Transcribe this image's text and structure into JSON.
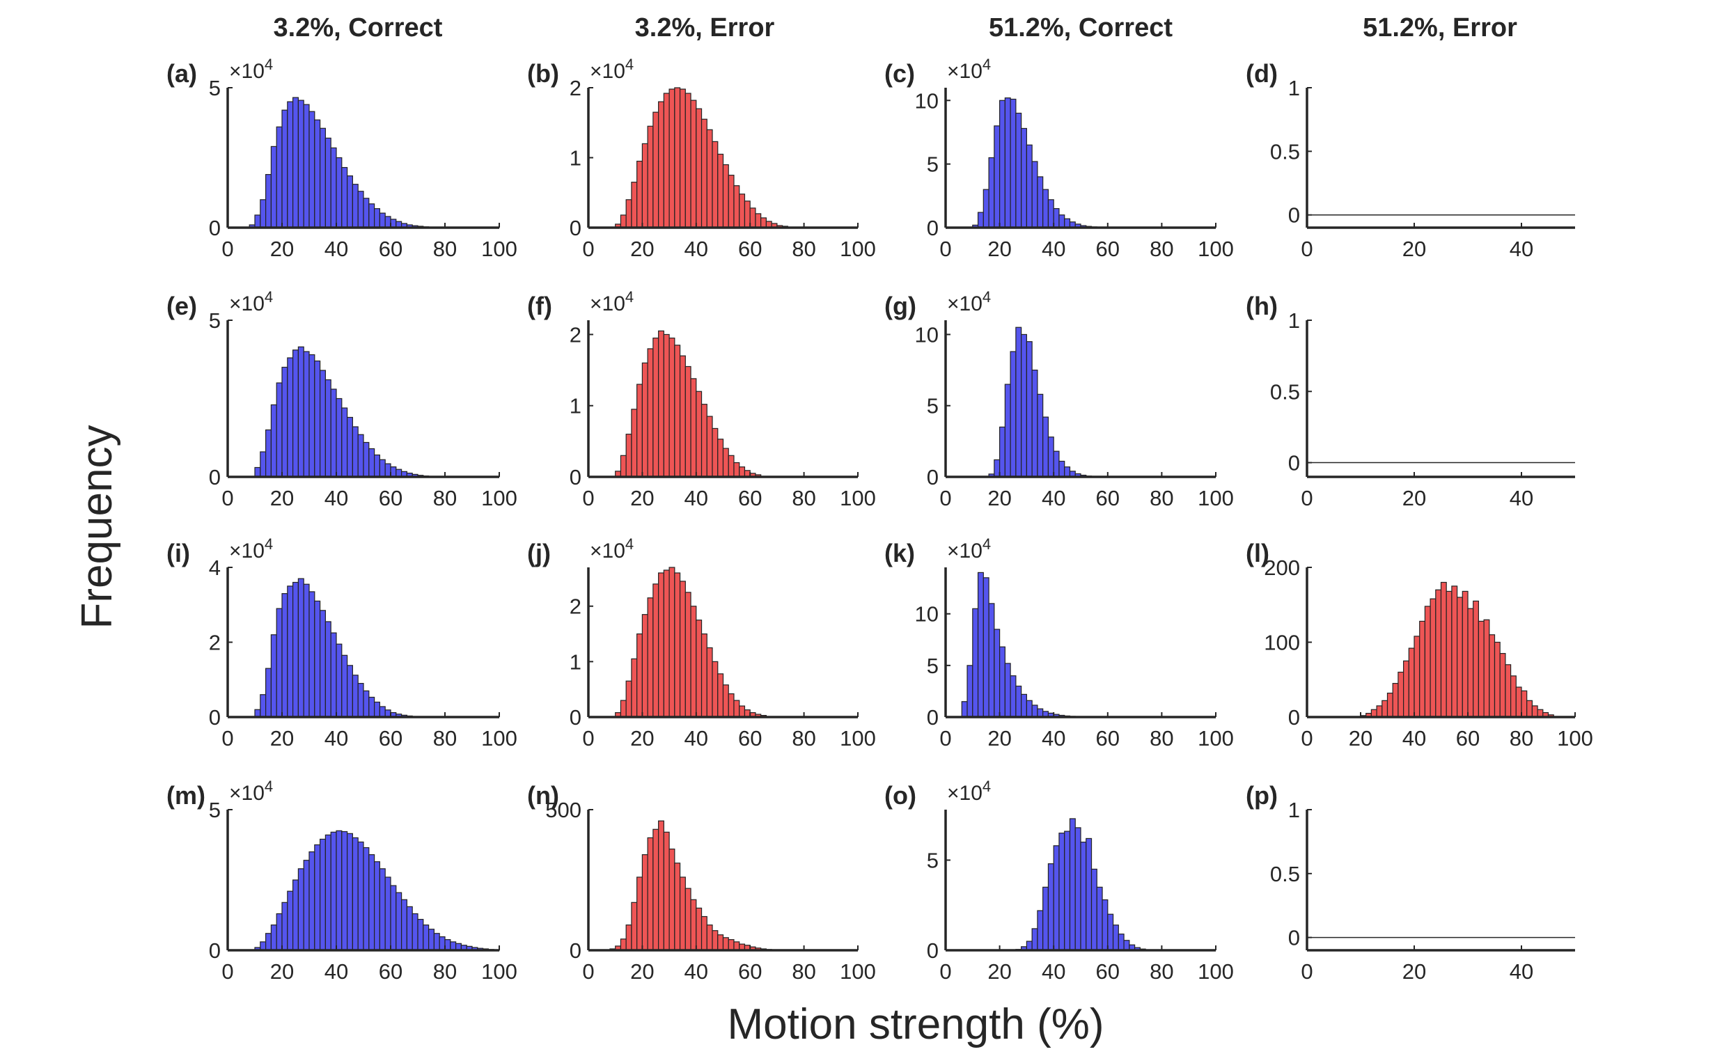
{
  "figure": {
    "column_titles": [
      "3.2%, Correct",
      "3.2%, Error",
      "51.2%, Correct",
      "51.2%, Error"
    ],
    "ylabel": "Frequency",
    "xlabel": "Motion strength (%)",
    "colors": {
      "blue": "#5555ee",
      "red": "#ee5555",
      "edge": "#222222",
      "axis": "#262626"
    }
  },
  "chart_data": [
    {
      "id": "a",
      "label": "(a)",
      "type": "bar",
      "color": "blue",
      "xlim": [
        0,
        100
      ],
      "xticks": [
        0,
        20,
        40,
        60,
        80,
        100
      ],
      "ylim": [
        0,
        5
      ],
      "yticks": [
        0,
        5
      ],
      "exponent": "4",
      "bin_start": 8,
      "bin_width": 2,
      "values": [
        0.1,
        0.45,
        1.0,
        1.9,
        2.9,
        3.6,
        4.2,
        4.5,
        4.65,
        4.55,
        4.4,
        4.15,
        3.85,
        3.55,
        3.2,
        2.85,
        2.5,
        2.15,
        1.85,
        1.55,
        1.3,
        1.05,
        0.85,
        0.68,
        0.52,
        0.4,
        0.3,
        0.22,
        0.15,
        0.1,
        0.07,
        0.05,
        0.03,
        0.02,
        0.01
      ]
    },
    {
      "id": "b",
      "label": "(b)",
      "type": "bar",
      "color": "red",
      "xlim": [
        0,
        100
      ],
      "xticks": [
        0,
        20,
        40,
        60,
        80,
        100
      ],
      "ylim": [
        0,
        2
      ],
      "yticks": [
        0,
        1,
        2
      ],
      "exponent": "4",
      "bin_start": 10,
      "bin_width": 2,
      "values": [
        0.05,
        0.18,
        0.4,
        0.65,
        0.95,
        1.2,
        1.45,
        1.65,
        1.8,
        1.92,
        1.98,
        2.0,
        1.98,
        1.92,
        1.82,
        1.7,
        1.55,
        1.4,
        1.23,
        1.05,
        0.9,
        0.75,
        0.6,
        0.48,
        0.38,
        0.28,
        0.2,
        0.14,
        0.09,
        0.06,
        0.03,
        0.02
      ]
    },
    {
      "id": "c",
      "label": "(c)",
      "type": "bar",
      "color": "blue",
      "xlim": [
        0,
        100
      ],
      "xticks": [
        0,
        20,
        40,
        60,
        80,
        100
      ],
      "ylim": [
        0,
        11
      ],
      "yticks": [
        0,
        5,
        10
      ],
      "exponent": "4",
      "bin_start": 10,
      "bin_width": 2,
      "values": [
        0.2,
        1.2,
        3.0,
        5.5,
        8.0,
        10.0,
        10.2,
        10.1,
        9.0,
        7.8,
        6.5,
        5.2,
        4.0,
        3.0,
        2.2,
        1.5,
        1.0,
        0.7,
        0.45,
        0.28,
        0.16,
        0.1,
        0.06
      ]
    },
    {
      "id": "d",
      "label": "(d)",
      "type": "bar",
      "color": "red",
      "xlim": [
        0,
        50
      ],
      "xticks": [
        0,
        20,
        40
      ],
      "ylim": [
        -0.1,
        1
      ],
      "yticks": [
        0,
        0.5,
        1
      ],
      "exponent": "",
      "zero_line": true,
      "bin_start": 0,
      "bin_width": 2,
      "values": []
    },
    {
      "id": "e",
      "label": "(e)",
      "type": "bar",
      "color": "blue",
      "xlim": [
        0,
        100
      ],
      "xticks": [
        0,
        20,
        40,
        60,
        80,
        100
      ],
      "ylim": [
        0,
        5
      ],
      "yticks": [
        0,
        5
      ],
      "exponent": "4",
      "bin_start": 10,
      "bin_width": 2,
      "values": [
        0.3,
        0.8,
        1.5,
        2.3,
        3.0,
        3.5,
        3.8,
        4.05,
        4.15,
        4.0,
        3.9,
        3.7,
        3.4,
        3.1,
        2.8,
        2.5,
        2.2,
        1.9,
        1.6,
        1.35,
        1.1,
        0.9,
        0.7,
        0.55,
        0.42,
        0.32,
        0.24,
        0.17,
        0.12,
        0.08,
        0.05,
        0.03
      ]
    },
    {
      "id": "f",
      "label": "(f)",
      "type": "bar",
      "color": "red",
      "xlim": [
        0,
        100
      ],
      "xticks": [
        0,
        20,
        40,
        60,
        80,
        100
      ],
      "ylim": [
        0,
        2.2
      ],
      "yticks": [
        0,
        1,
        2
      ],
      "exponent": "4",
      "bin_start": 10,
      "bin_width": 2,
      "values": [
        0.08,
        0.3,
        0.6,
        0.95,
        1.3,
        1.6,
        1.8,
        1.95,
        2.05,
        2.0,
        1.95,
        1.85,
        1.7,
        1.55,
        1.38,
        1.2,
        1.02,
        0.85,
        0.68,
        0.53,
        0.4,
        0.3,
        0.2,
        0.14,
        0.09,
        0.05,
        0.03
      ]
    },
    {
      "id": "g",
      "label": "(g)",
      "type": "bar",
      "color": "blue",
      "xlim": [
        0,
        100
      ],
      "xticks": [
        0,
        20,
        40,
        60,
        80,
        100
      ],
      "ylim": [
        0,
        11
      ],
      "yticks": [
        0,
        5,
        10
      ],
      "exponent": "4",
      "bin_start": 16,
      "bin_width": 2,
      "values": [
        0.2,
        1.2,
        3.5,
        6.5,
        8.8,
        10.5,
        10.0,
        9.5,
        7.5,
        5.8,
        4.2,
        2.8,
        1.8,
        1.1,
        0.7,
        0.4,
        0.22,
        0.12,
        0.06,
        0.03
      ]
    },
    {
      "id": "h",
      "label": "(h)",
      "type": "bar",
      "color": "red",
      "xlim": [
        0,
        50
      ],
      "xticks": [
        0,
        20,
        40
      ],
      "ylim": [
        -0.1,
        1
      ],
      "yticks": [
        0,
        0.5,
        1
      ],
      "exponent": "",
      "zero_line": true,
      "bin_start": 0,
      "bin_width": 2,
      "values": []
    },
    {
      "id": "i",
      "label": "(i)",
      "type": "bar",
      "color": "blue",
      "xlim": [
        0,
        100
      ],
      "xticks": [
        0,
        20,
        40,
        60,
        80,
        100
      ],
      "ylim": [
        0,
        4
      ],
      "yticks": [
        0,
        2,
        4
      ],
      "exponent": "4",
      "bin_start": 10,
      "bin_width": 2,
      "values": [
        0.2,
        0.6,
        1.3,
        2.2,
        2.9,
        3.3,
        3.5,
        3.6,
        3.7,
        3.55,
        3.35,
        3.1,
        2.85,
        2.55,
        2.25,
        1.95,
        1.65,
        1.38,
        1.12,
        0.9,
        0.7,
        0.53,
        0.4,
        0.28,
        0.19,
        0.12,
        0.08,
        0.05,
        0.03
      ]
    },
    {
      "id": "j",
      "label": "(j)",
      "type": "bar",
      "color": "red",
      "xlim": [
        0,
        100
      ],
      "xticks": [
        0,
        20,
        40,
        60,
        80,
        100
      ],
      "ylim": [
        0,
        2.7
      ],
      "yticks": [
        0,
        1,
        2
      ],
      "exponent": "4",
      "bin_start": 10,
      "bin_width": 2,
      "values": [
        0.08,
        0.3,
        0.65,
        1.05,
        1.5,
        1.85,
        2.15,
        2.4,
        2.6,
        2.65,
        2.7,
        2.6,
        2.45,
        2.25,
        2.0,
        1.75,
        1.5,
        1.25,
        1.0,
        0.78,
        0.58,
        0.42,
        0.3,
        0.2,
        0.13,
        0.08,
        0.05,
        0.03
      ]
    },
    {
      "id": "k",
      "label": "(k)",
      "type": "bar",
      "color": "blue",
      "xlim": [
        0,
        100
      ],
      "xticks": [
        0,
        20,
        40,
        60,
        80,
        100
      ],
      "ylim": [
        0,
        14.5
      ],
      "yticks": [
        0,
        5,
        10
      ],
      "exponent": "4",
      "bin_start": 6,
      "bin_width": 2,
      "values": [
        1.5,
        5.0,
        10.5,
        14.0,
        13.5,
        11.0,
        8.5,
        6.8,
        5.2,
        4.0,
        3.0,
        2.2,
        1.6,
        1.15,
        0.8,
        0.55,
        0.38,
        0.26,
        0.17,
        0.11,
        0.07,
        0.04
      ]
    },
    {
      "id": "l",
      "label": "(l)",
      "type": "bar",
      "color": "red",
      "xlim": [
        0,
        100
      ],
      "xticks": [
        0,
        20,
        40,
        60,
        80,
        100
      ],
      "ylim": [
        0,
        200
      ],
      "yticks": [
        0,
        100,
        200
      ],
      "exponent": "",
      "bin_start": 20,
      "bin_width": 2,
      "values": [
        2,
        5,
        10,
        15,
        22,
        32,
        45,
        60,
        75,
        92,
        108,
        128,
        148,
        158,
        170,
        180,
        168,
        175,
        160,
        168,
        145,
        155,
        128,
        130,
        110,
        100,
        85,
        70,
        55,
        40,
        35,
        22,
        15,
        10,
        6,
        3
      ]
    },
    {
      "id": "m",
      "label": "(m)",
      "type": "bar",
      "color": "blue",
      "xlim": [
        0,
        100
      ],
      "xticks": [
        0,
        20,
        40,
        60,
        80,
        100
      ],
      "ylim": [
        0,
        5
      ],
      "yticks": [
        0,
        5
      ],
      "exponent": "4",
      "bin_start": 10,
      "bin_width": 2,
      "values": [
        0.1,
        0.3,
        0.6,
        0.9,
        1.3,
        1.7,
        2.1,
        2.5,
        2.9,
        3.2,
        3.5,
        3.75,
        3.95,
        4.1,
        4.2,
        4.25,
        4.22,
        4.15,
        4.0,
        3.85,
        3.65,
        3.4,
        3.15,
        2.9,
        2.6,
        2.3,
        2.05,
        1.8,
        1.55,
        1.3,
        1.1,
        0.9,
        0.75,
        0.6,
        0.48,
        0.38,
        0.3,
        0.24,
        0.18,
        0.14,
        0.1,
        0.07,
        0.05,
        0.03,
        0.02
      ]
    },
    {
      "id": "n",
      "label": "(n)",
      "type": "bar",
      "color": "red",
      "xlim": [
        0,
        100
      ],
      "xticks": [
        0,
        20,
        40,
        60,
        80,
        100
      ],
      "ylim": [
        0,
        500
      ],
      "yticks": [
        0,
        500
      ],
      "exponent": "",
      "bin_start": 8,
      "bin_width": 2,
      "values": [
        5,
        15,
        40,
        90,
        170,
        260,
        340,
        400,
        430,
        460,
        420,
        360,
        310,
        260,
        220,
        180,
        150,
        120,
        90,
        70,
        55,
        45,
        38,
        30,
        22,
        18,
        12,
        8,
        5,
        3
      ]
    },
    {
      "id": "o",
      "label": "(o)",
      "type": "bar",
      "color": "blue",
      "xlim": [
        0,
        100
      ],
      "xticks": [
        0,
        20,
        40,
        60,
        80,
        100
      ],
      "ylim": [
        0,
        7.8
      ],
      "yticks": [
        0,
        5
      ],
      "exponent": "4",
      "bin_start": 26,
      "bin_width": 2,
      "values": [
        0.05,
        0.2,
        0.5,
        1.2,
        2.2,
        3.5,
        4.8,
        5.8,
        6.5,
        6.6,
        7.3,
        6.8,
        6.0,
        6.2,
        4.5,
        3.5,
        2.8,
        2.0,
        1.4,
        0.9,
        0.55,
        0.3,
        0.15,
        0.07,
        0.03
      ]
    },
    {
      "id": "p",
      "label": "(p)",
      "type": "bar",
      "color": "red",
      "xlim": [
        0,
        50
      ],
      "xticks": [
        0,
        20,
        40
      ],
      "ylim": [
        -0.1,
        1
      ],
      "yticks": [
        0,
        0.5,
        1
      ],
      "exponent": "",
      "zero_line": true,
      "bin_start": 0,
      "bin_width": 2,
      "values": []
    }
  ]
}
